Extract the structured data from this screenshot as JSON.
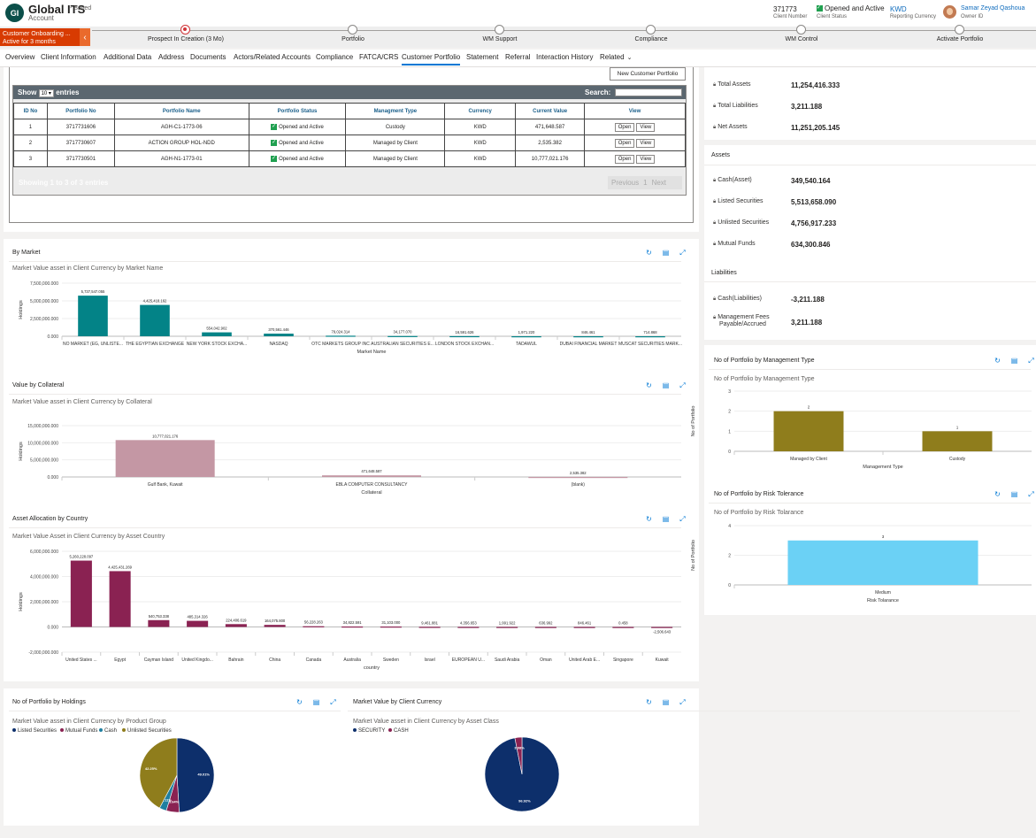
{
  "header": {
    "avatar": "GI",
    "title": "Global ITS",
    "saved": "- Saved",
    "subtitle": "Account",
    "client_number": "371773",
    "client_number_label": "Client Number",
    "client_status": "Opened and Active",
    "client_status_label": "Client Status",
    "currency": "KWD",
    "currency_label": "Reporting Currency",
    "owner": "Samar Zeyad Qashoua",
    "owner_label": "Owner ID"
  },
  "bpf": {
    "stage_name": "Customer Onboarding ...",
    "stage_duration": "Active for 3 months",
    "stages": [
      "Prospect In Creation  (3 Mo)",
      "Portfolio",
      "WM Support",
      "Compliance",
      "WM Control",
      "Activate Portfolio"
    ]
  },
  "tabs": [
    "Overview",
    "Client Information",
    "Additional Data",
    "Address",
    "Documents",
    "Actors/Related Accounts",
    "Compliance",
    "FATCA/CRS",
    "Customer Portfolio",
    "Statement",
    "Referral",
    "Interaction History",
    "Related"
  ],
  "portfolio": {
    "new_button": "New Customer Portfolio",
    "show": "Show",
    "show_value": "10",
    "entries": "entries",
    "search": "Search:",
    "columns": [
      "ID No",
      "Portfolio No",
      "Portfolio Name",
      "Portfolio Status",
      "Managment Type",
      "Currency",
      "Current Value",
      "View"
    ],
    "rows": [
      {
        "id": "1",
        "no": "3717731606",
        "name": "AGH-C1-1773-06",
        "status": "Opened and Active",
        "mgmt": "Custody",
        "cur": "KWD",
        "value": "471,648.587"
      },
      {
        "id": "2",
        "no": "3717730607",
        "name": "ACTION GROUP HOL-NDD",
        "status": "Opened and Active",
        "mgmt": "Managed by Client",
        "cur": "KWD",
        "value": "2,535.382"
      },
      {
        "id": "3",
        "no": "3717730501",
        "name": "AGH-N1-1773-01",
        "status": "Opened and Active",
        "mgmt": "Managed by Client",
        "cur": "KWD",
        "value": "10,777,021.176"
      }
    ],
    "open": "Open",
    "view": "View",
    "showing": "Showing 1 to 3 of 3 entries",
    "previous": "Previous",
    "page": "1",
    "next": "Next"
  },
  "summary": {
    "items": [
      {
        "label": "Total Assets",
        "value": "11,254,416.333"
      },
      {
        "label": "Total Liabilities",
        "value": "3,211.188"
      },
      {
        "label": "Net Assets",
        "value": "11,251,205.145"
      }
    ]
  },
  "assets": {
    "title": "Assets",
    "items": [
      {
        "label": "Cash(Asset)",
        "value": "349,540.164"
      },
      {
        "label": "Listed Securities",
        "value": "5,513,658.090"
      },
      {
        "label": "Unlisted Securities",
        "value": "4,756,917.233"
      },
      {
        "label": "Mutual Funds",
        "value": "634,300.846"
      }
    ]
  },
  "liabilities": {
    "title": "Liabilities",
    "items": [
      {
        "label": "Cash(Liabilities)",
        "value": "-3,211.188"
      },
      {
        "label": "Management Fees",
        "label2": "Payable/Accrued",
        "value": "3,211.188"
      }
    ]
  },
  "cards": {
    "market": {
      "title": "By Market",
      "subtitle": "Market Value asset in Client Currency by Market Name"
    },
    "collateral": {
      "title": "Value by Collateral",
      "subtitle": "Market Value asset in Client Currency by Collateral"
    },
    "country": {
      "title": "Asset Allocation by Country",
      "subtitle": "Market Value Asset in Client Currency by Asset Country"
    },
    "holdings": {
      "title": "No of Portfolio by Holdings",
      "subtitle": "Market Value asset in Client Currency by Product Group"
    },
    "currency": {
      "title": "Market Value by Client Currency",
      "subtitle": "Market Value asset in Client Currency by Asset Class"
    },
    "mgmt": {
      "title": "No of Portfolio by Management Type",
      "subtitle": "No of Portfolio by Management Type"
    },
    "risk": {
      "title": "No of Portfolio by Risk Tolerance",
      "subtitle": "No of Portfolio by Risk Tolarance"
    }
  },
  "chart_data": [
    {
      "id": "market",
      "type": "bar",
      "color": "#038387",
      "categories": [
        "NO MARKET (EG, UNLISTE...",
        "THE EGYPTIAN EXCHANGE",
        "NEW YORK STOCK EXCHA...",
        "NASDAQ",
        "OTC MARKETS GROUP INC",
        "AUSTRALIAN SECURITIES E...",
        "LONDON STOCK EXCHAN...",
        "TADAWUL",
        "DUBAI FINANCIAL MARKET",
        "MUSCAT SECURITIES MARK..."
      ],
      "values": [
        5737547.055,
        4425418.162,
        554042.902,
        370561.446,
        79024.314,
        34177.07,
        16591.626,
        1971.22,
        846.461,
        714.868
      ],
      "labels": [
        "5,737,547.055",
        "4,425,418.162",
        "554,042.902",
        "370,561.446",
        "79,024.314",
        "34,177.070",
        "16,591.626",
        "1,971.220",
        "846.461",
        "714.868"
      ],
      "ylim": [
        0,
        7500000
      ],
      "ticks": [
        "7,500,000.000",
        "5,000,000.000",
        "2,500,000.000",
        "0.000"
      ],
      "xlabel": "Market Name",
      "ylabel": "Holdings"
    },
    {
      "id": "collateral",
      "type": "bar",
      "color": "#c497a4",
      "categories": [
        "Gulf Bank, Kuwait",
        "EBLA COMPUTER CONSULTANCY",
        "(blank)"
      ],
      "values": [
        10777021.176,
        471648.587,
        2535.382
      ],
      "labels": [
        "10,777,021.176",
        "471,648.587",
        "2,535.382"
      ],
      "ylim": [
        0,
        15000000
      ],
      "ticks": [
        "15,000,000.000",
        "10,000,000.000",
        "5,000,000.000",
        "0.000"
      ],
      "xlabel": "Collateral",
      "ylabel": "Holdings"
    },
    {
      "id": "country",
      "type": "bar",
      "color": "#8a2252",
      "categories": [
        "United States ...",
        "Egypt",
        "Cayman Island",
        "United Kingdo...",
        "Bahrain",
        "China",
        "Canada",
        "Australia",
        "Sweden",
        "Israel",
        "EUROPEAN U...",
        "Saudi Arabia",
        "Oman",
        "United Arab E...",
        "Singapore",
        "Kuwait"
      ],
      "values": [
        5260228.097,
        4425431.269,
        540753.338,
        485314.326,
        224406.619,
        164075.8,
        56228.263,
        34822.591,
        31103.0,
        9461.881,
        4356.653,
        1991.922,
        636.992,
        846.461,
        0.458,
        -2506.643
      ],
      "labels": [
        "5,260,228.097",
        "4,425,431.269",
        "540,753.338",
        "485,314.326",
        "224,406.619",
        "164,075.800",
        "56,228.263",
        "34,822.591",
        "31,103.000",
        "9,461.881",
        "4,356.653",
        "1,991.922",
        "636.992",
        "846.461",
        "0.458",
        "-2,506.643"
      ],
      "ylim": [
        -2000000,
        6000000
      ],
      "ticks": [
        "6,000,000.000",
        "4,000,000.000",
        "2,000,000.000",
        "0.000",
        "-2,000,000.000"
      ],
      "xlabel": "country",
      "ylabel": "Holdings"
    },
    {
      "id": "mgmt",
      "type": "bar",
      "color": "#8f7d1c",
      "categories": [
        "Managed by Client",
        "Custody"
      ],
      "values": [
        2,
        1
      ],
      "labels": [
        "2",
        "1"
      ],
      "ylim": [
        0,
        3
      ],
      "ticks": [
        "3",
        "2",
        "1",
        "0"
      ],
      "xlabel": "Management Type",
      "ylabel": "No of Portfolio"
    },
    {
      "id": "risk",
      "type": "bar",
      "color": "#6bd1f5",
      "categories": [
        "Medium"
      ],
      "values": [
        3
      ],
      "labels": [
        "3"
      ],
      "ylim": [
        0,
        4
      ],
      "ticks": [
        "4",
        "2",
        "0"
      ],
      "xlabel": "Risk Tolarance",
      "ylabel": "No of Portfolio"
    },
    {
      "id": "holdings",
      "type": "pie",
      "legend": [
        "Listed Securities",
        "Mutual Funds",
        "Cash",
        "Unlisted Securities"
      ],
      "colors": [
        "#0d2f6b",
        "#8a2252",
        "#1f7fa0",
        "#8f7d1c"
      ],
      "values": [
        49.01,
        5.64,
        3.11,
        42.25
      ],
      "labels": [
        "49.01%",
        "5.64%",
        "3.11%",
        "42.25%"
      ]
    },
    {
      "id": "currency",
      "type": "pie",
      "legend": [
        "SECURITY",
        "CASH"
      ],
      "colors": [
        "#0d2f6b",
        "#8a2252"
      ],
      "values": [
        96.92,
        3.08
      ],
      "labels": [
        "96.92%",
        "3.08%"
      ]
    }
  ]
}
